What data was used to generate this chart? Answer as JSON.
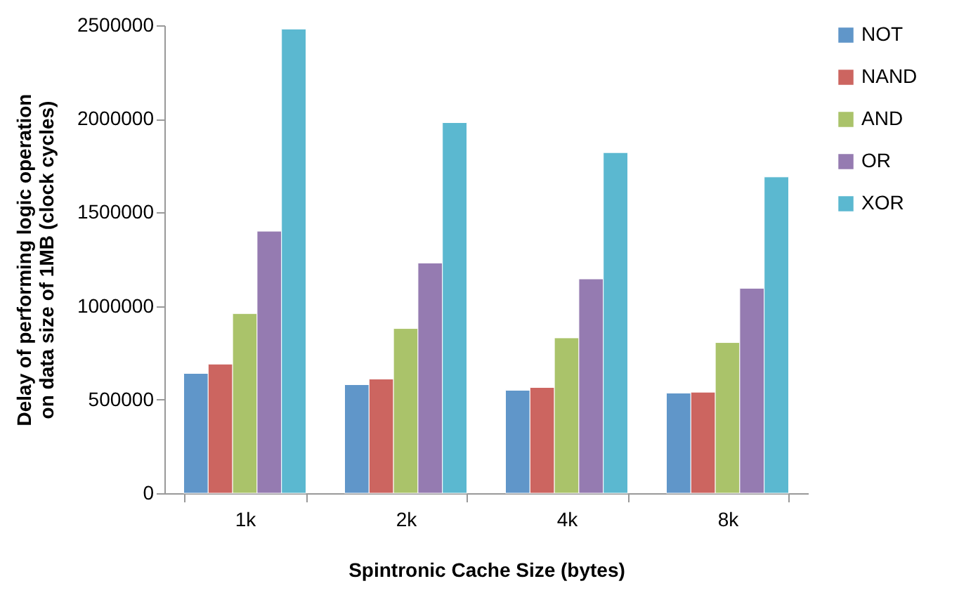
{
  "chart_data": {
    "type": "bar",
    "xlabel": "Spintronic Cache Size (bytes)",
    "ylabel": "Delay of performing logic operation on data size of 1MB (clock cycles)",
    "categories": [
      "1k",
      "2k",
      "4k",
      "8k"
    ],
    "series": [
      {
        "name": "NOT",
        "color": "#6096c9",
        "values": [
          640000,
          580000,
          550000,
          535000
        ]
      },
      {
        "name": "NAND",
        "color": "#cc6560",
        "values": [
          690000,
          610000,
          565000,
          540000
        ]
      },
      {
        "name": "AND",
        "color": "#aac36a",
        "values": [
          960000,
          880000,
          830000,
          805000
        ]
      },
      {
        "name": "OR",
        "color": "#957bb1",
        "values": [
          1400000,
          1230000,
          1145000,
          1095000
        ]
      },
      {
        "name": "XOR",
        "color": "#5bb8d0",
        "values": [
          2480000,
          1980000,
          1820000,
          1690000
        ]
      }
    ],
    "ylim": [
      0,
      2500000
    ],
    "yticks": [
      0,
      500000,
      1000000,
      1500000,
      2000000,
      2500000
    ],
    "legend": "right",
    "grid": false
  }
}
